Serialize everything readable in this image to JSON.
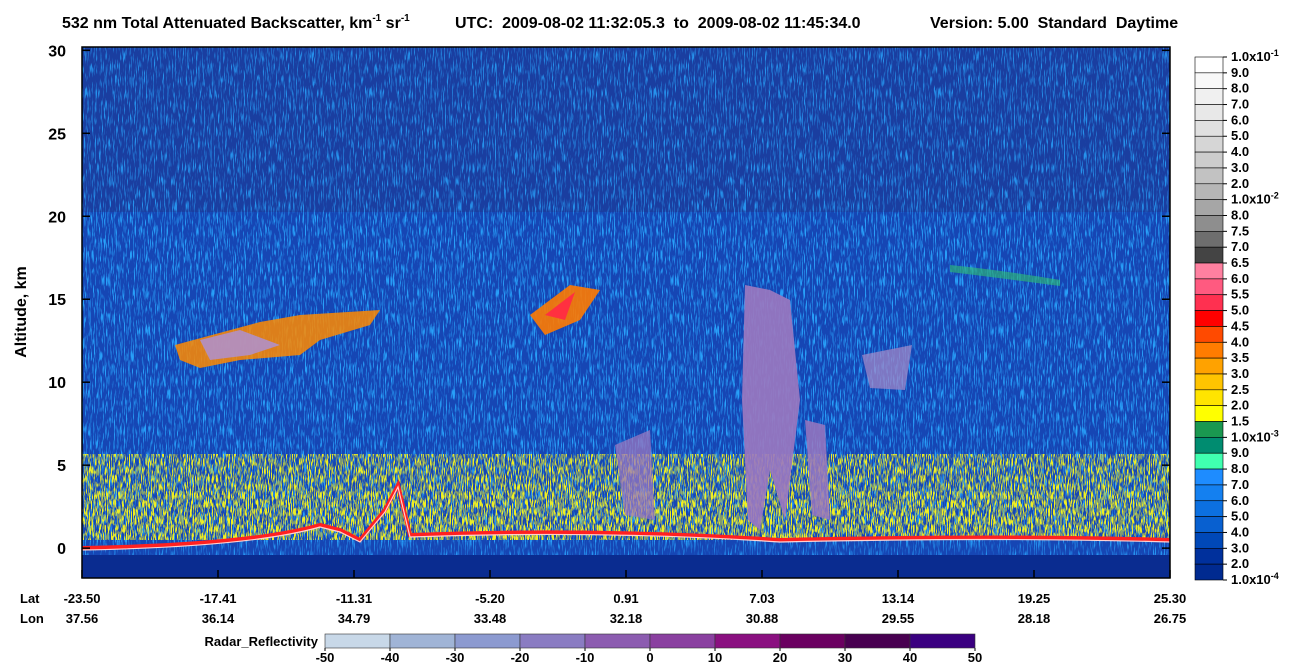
{
  "chart_data": {
    "type": "curtain",
    "title": {
      "text": "532 nm Total Attenuated Backscatter, km",
      "sup1": "-1",
      "text2": " sr",
      "sup2": "-1"
    },
    "utc": "UTC:  2009-08-02 11:32:05.3  to  2009-08-02 11:45:34.0",
    "version": "Version: 5.00  Standard  Daytime",
    "ylabel": "Altitude, km",
    "ylim": [
      -1.8,
      30.2
    ],
    "yticks": [
      0,
      5,
      10,
      15,
      20,
      25,
      30
    ],
    "x_rows": [
      "Lat",
      "Lon"
    ],
    "lat": [
      "-23.50",
      "-17.41",
      "-11.31",
      "-5.20",
      "0.91",
      "7.03",
      "13.14",
      "19.25",
      "25.30"
    ],
    "lon": [
      "37.56",
      "36.14",
      "34.79",
      "33.48",
      "32.18",
      "30.88",
      "29.55",
      "28.18",
      "26.75"
    ],
    "colorbar": {
      "labels": [
        {
          "text": "1.0x10",
          "sup": "-1"
        },
        "9.0",
        "8.0",
        "7.0",
        "6.0",
        "5.0",
        "4.0",
        "3.0",
        "2.0",
        {
          "text": "1.0x10",
          "sup": "-2"
        },
        "8.0",
        "7.5",
        "7.0",
        "6.5",
        "6.0",
        "5.5",
        "5.0",
        "4.5",
        "4.0",
        "3.5",
        "3.0",
        "2.5",
        "2.0",
        "1.5",
        {
          "text": "1.0x10",
          "sup": "-3"
        },
        "9.0",
        "8.0",
        "7.0",
        "6.0",
        "5.0",
        "4.0",
        "3.0",
        "2.0",
        {
          "text": "1.0x10",
          "sup": "-4"
        }
      ],
      "colors": [
        "#ffffff",
        "#f8f8f8",
        "#f0f0f0",
        "#e8e8e8",
        "#e0e0e0",
        "#d6d6d6",
        "#cccccc",
        "#c2c2c2",
        "#b6b6b6",
        "#a6a6a6",
        "#8e8e8e",
        "#6e6e6e",
        "#444444",
        "#ff80a0",
        "#ff5a80",
        "#ff3050",
        "#ff0000",
        "#ff4a00",
        "#ff7c00",
        "#ffa200",
        "#ffc400",
        "#ffe400",
        "#ffff00",
        "#1a9850",
        "#008c70",
        "#40ffb0",
        "#1e8cff",
        "#1480f0",
        "#0c70e0",
        "#0860d0",
        "#0048b8",
        "#00309c",
        "#002a90"
      ]
    },
    "radar": {
      "title": "Radar_Reflectivity",
      "ticks": [
        -50,
        -40,
        -30,
        -20,
        -10,
        0,
        10,
        20,
        30,
        40,
        50
      ],
      "colors": [
        "#c8d8e8",
        "#a0b4d6",
        "#8c9ad0",
        "#8a7cc2",
        "#8c5cb0",
        "#8a40a0",
        "#8a1080",
        "#6a0060",
        "#480050",
        "#3a0080"
      ]
    }
  }
}
